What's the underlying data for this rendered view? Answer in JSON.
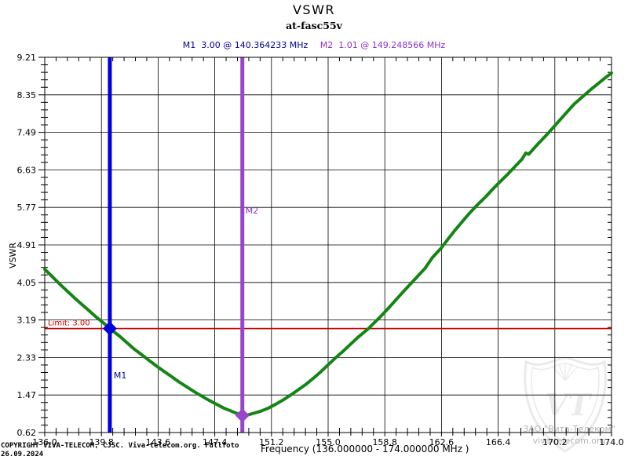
{
  "header": {
    "title": "VSWR",
    "subtitle": "at-fasc55v"
  },
  "chart_data": {
    "type": "line",
    "title": "VSWR",
    "subtitle": "at-fasc55v",
    "xlabel": "Frequency (136.000000 - 174.000000 MHz )",
    "ylabel": "VSWR",
    "xlim": [
      136.0,
      174.0
    ],
    "ylim": [
      0.62,
      9.21
    ],
    "x_ticks": [
      "136.0",
      "139.8",
      "143.6",
      "147.4",
      "151.2",
      "155.0",
      "158.8",
      "162.6",
      "166.4",
      "170.2",
      "174.0"
    ],
    "y_ticks": [
      "0.62",
      "1.47",
      "2.33",
      "3.19",
      "4.05",
      "4.91",
      "5.77",
      "6.63",
      "7.49",
      "8.35",
      "9.21"
    ],
    "minor_divisions": 5,
    "grid": "major",
    "grid_color": "#000000",
    "series": [
      {
        "name": "VSWR",
        "color": "#148514",
        "points": [
          [
            136.0,
            4.36
          ],
          [
            136.5,
            4.19
          ],
          [
            137.0,
            4.02
          ],
          [
            137.5,
            3.86
          ],
          [
            138.0,
            3.7
          ],
          [
            138.5,
            3.55
          ],
          [
            139.0,
            3.4
          ],
          [
            139.5,
            3.25
          ],
          [
            140.0,
            3.11
          ],
          [
            140.364,
            3.0
          ],
          [
            141.0,
            2.83
          ],
          [
            141.5,
            2.68
          ],
          [
            142.0,
            2.53
          ],
          [
            142.5,
            2.4
          ],
          [
            143.0,
            2.27
          ],
          [
            143.5,
            2.14
          ],
          [
            144.0,
            2.02
          ],
          [
            144.5,
            1.9
          ],
          [
            145.0,
            1.78
          ],
          [
            145.5,
            1.67
          ],
          [
            146.0,
            1.56
          ],
          [
            146.5,
            1.46
          ],
          [
            147.0,
            1.36
          ],
          [
            147.5,
            1.27
          ],
          [
            148.0,
            1.18
          ],
          [
            148.5,
            1.11
          ],
          [
            149.0,
            1.04
          ],
          [
            149.249,
            1.01
          ],
          [
            149.6,
            1.02
          ],
          [
            150.0,
            1.06
          ],
          [
            150.5,
            1.11
          ],
          [
            151.0,
            1.18
          ],
          [
            151.5,
            1.27
          ],
          [
            152.0,
            1.37
          ],
          [
            152.5,
            1.48
          ],
          [
            153.0,
            1.6
          ],
          [
            153.5,
            1.72
          ],
          [
            154.0,
            1.86
          ],
          [
            154.5,
            2.01
          ],
          [
            155.0,
            2.17
          ],
          [
            155.5,
            2.33
          ],
          [
            156.0,
            2.48
          ],
          [
            156.5,
            2.64
          ],
          [
            157.0,
            2.8
          ],
          [
            157.7,
            3.0
          ],
          [
            158.5,
            3.27
          ],
          [
            159.0,
            3.45
          ],
          [
            159.5,
            3.64
          ],
          [
            160.0,
            3.83
          ],
          [
            160.6,
            4.05
          ],
          [
            161.5,
            4.38
          ],
          [
            162.0,
            4.63
          ],
          [
            162.6,
            4.85
          ],
          [
            163.0,
            5.03
          ],
          [
            163.5,
            5.25
          ],
          [
            164.0,
            5.45
          ],
          [
            164.5,
            5.65
          ],
          [
            165.0,
            5.83
          ],
          [
            165.6,
            6.03
          ],
          [
            166.0,
            6.18
          ],
          [
            166.5,
            6.35
          ],
          [
            167.0,
            6.52
          ],
          [
            167.5,
            6.7
          ],
          [
            168.0,
            6.88
          ],
          [
            168.25,
            7.02
          ],
          [
            168.45,
            6.99
          ],
          [
            169.0,
            7.2
          ],
          [
            169.8,
            7.49
          ],
          [
            170.5,
            7.76
          ],
          [
            171.0,
            7.95
          ],
          [
            171.5,
            8.14
          ],
          [
            172.2,
            8.35
          ],
          [
            172.6,
            8.47
          ],
          [
            173.0,
            8.58
          ],
          [
            173.5,
            8.72
          ],
          [
            174.0,
            8.85
          ]
        ]
      }
    ],
    "markers": [
      {
        "id": "M1",
        "freq": 140.364233,
        "value": 3.0,
        "color": "#0000dd",
        "label_color": "#000099",
        "readout": "M1  3.00 @ 140.364233 MHz"
      },
      {
        "id": "M2",
        "freq": 149.248566,
        "value": 1.01,
        "color": "#9944cc",
        "label_color": "#8833cc",
        "readout": "M2  1.01 @ 149.248566 MHz"
      }
    ],
    "limit": {
      "label": "Limit: 3.00",
      "value": 3.0,
      "color": "#cc0000"
    },
    "legend": "none"
  },
  "footer": {
    "copyright_line1": "COPYRIGHT VIVA-TELECOM, CJSC. Viva-telecom.org. Fullfoto",
    "copyright_line2": "26.09.2024"
  },
  "watermark": {
    "line1": "ЗАО \"Вита-Телеком\"",
    "line2": "viva-telecom.org",
    "logo": "vt-shield-icon",
    "color": "#b4b4b4"
  }
}
